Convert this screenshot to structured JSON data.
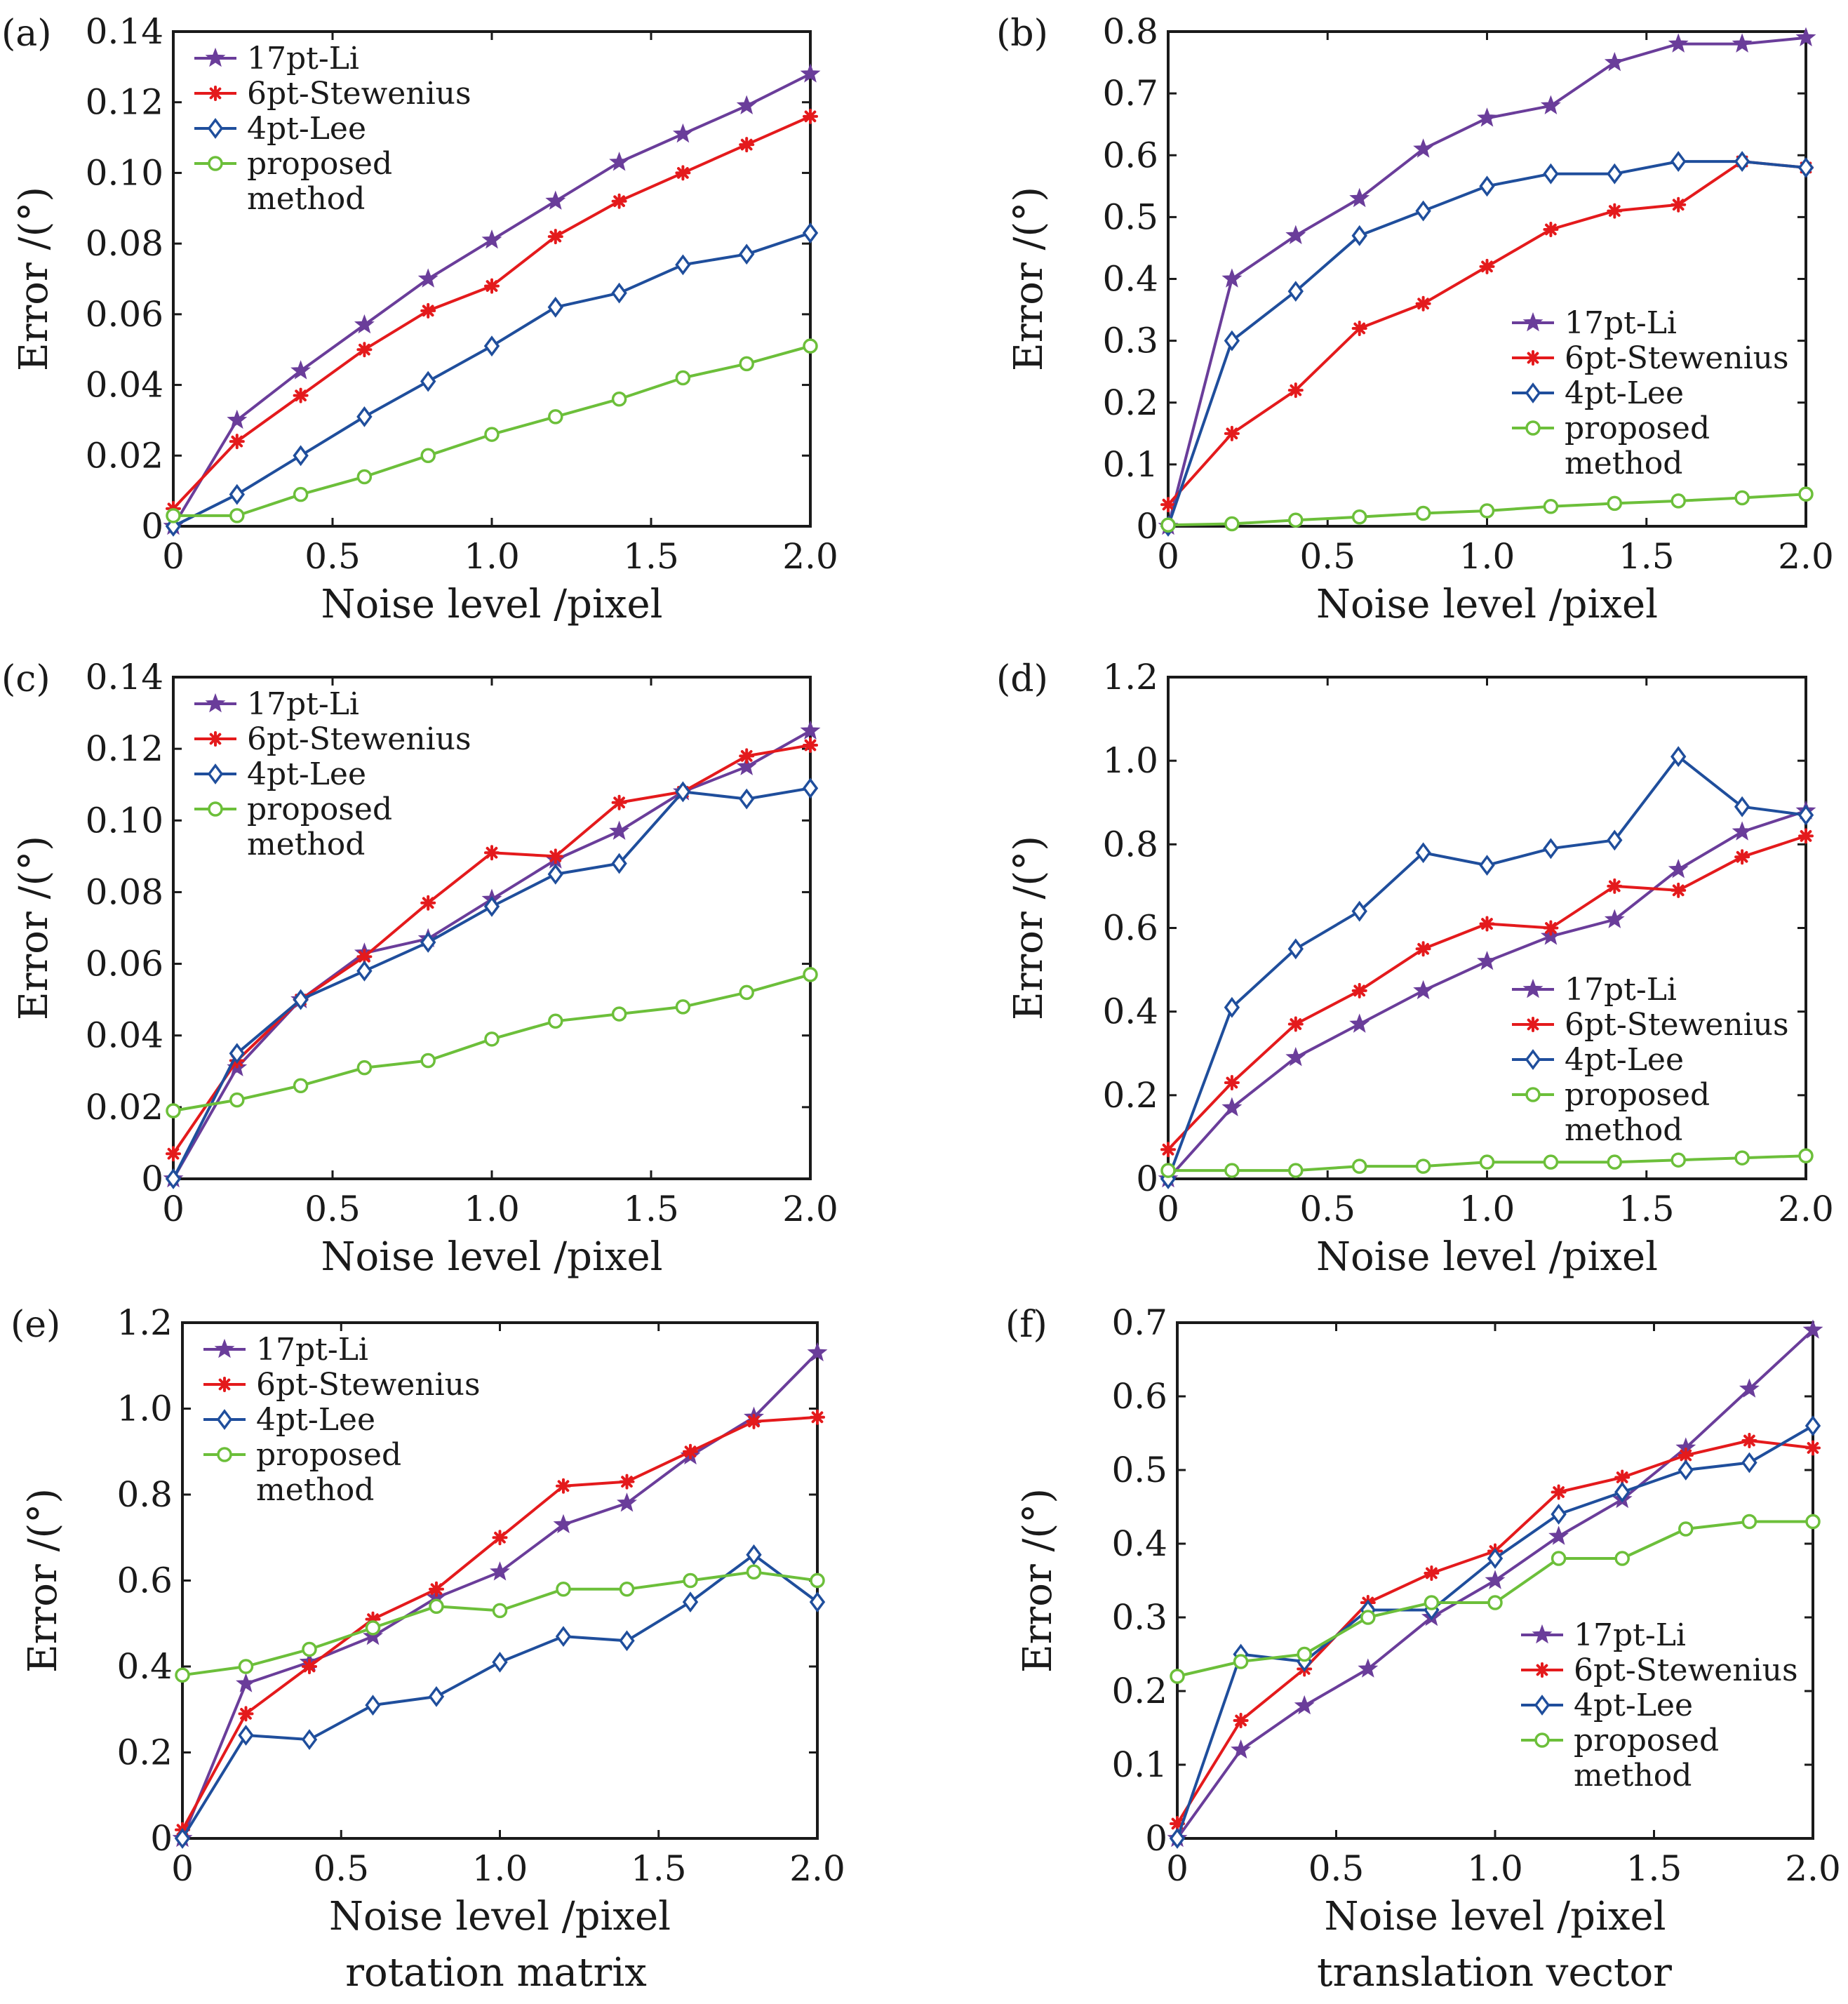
{
  "colors": {
    "17pt-Li": "#6a3d9a",
    "6pt-Stewenius": "#e41a1c",
    "4pt-Lee": "#1f4e9c",
    "proposed": "#6cbf3a"
  },
  "markers": {
    "17pt-Li": "star-marker",
    "6pt-Stewenius": "asterisk-marker",
    "4pt-Lee": "diamond-marker",
    "proposed": "circle-marker"
  },
  "captions": {
    "left": "rotation matrix",
    "right": "translation vector"
  },
  "chart_data": [
    {
      "id": "a",
      "panel_label": "(a)",
      "type": "line",
      "xlabel": "Noise level /pixel",
      "ylabel": "Error /(°)",
      "xlim": [
        0,
        2.0
      ],
      "ylim": [
        0,
        0.14
      ],
      "xticks": [
        0,
        0.5,
        1.0,
        1.5,
        2.0
      ],
      "xtick_labels": [
        "0",
        "0.5",
        "1.0",
        "1.5",
        "2.0"
      ],
      "yticks": [
        0,
        0.02,
        0.04,
        0.06,
        0.08,
        0.1,
        0.12,
        0.14
      ],
      "ytick_labels": [
        "0",
        "0.02",
        "0.04",
        "0.06",
        "0.08",
        "0.10",
        "0.12",
        "0.14"
      ],
      "legend_position": "top-left",
      "x": [
        0,
        0.2,
        0.4,
        0.6,
        0.8,
        1.0,
        1.2,
        1.4,
        1.6,
        1.8,
        2.0
      ],
      "series": [
        {
          "key": "17pt-Li",
          "legend": [
            "17pt-Li"
          ],
          "values": [
            0,
            0.03,
            0.044,
            0.057,
            0.07,
            0.081,
            0.092,
            0.103,
            0.111,
            0.119,
            0.128
          ]
        },
        {
          "key": "6pt-Stewenius",
          "legend": [
            "6pt-Stewenius"
          ],
          "values": [
            0.005,
            0.024,
            0.037,
            0.05,
            0.061,
            0.068,
            0.082,
            0.092,
            0.1,
            0.108,
            0.116
          ]
        },
        {
          "key": "4pt-Lee",
          "legend": [
            "4pt-Lee"
          ],
          "values": [
            0,
            0.009,
            0.02,
            0.031,
            0.041,
            0.051,
            0.062,
            0.066,
            0.074,
            0.077,
            0.083
          ]
        },
        {
          "key": "proposed",
          "legend": [
            "proposed",
            "method"
          ],
          "values": [
            0.003,
            0.003,
            0.009,
            0.014,
            0.02,
            0.026,
            0.031,
            0.036,
            0.042,
            0.046,
            0.051
          ]
        }
      ]
    },
    {
      "id": "b",
      "panel_label": "(b)",
      "type": "line",
      "xlabel": "Noise level /pixel",
      "ylabel": "Error /(°)",
      "xlim": [
        0,
        2.0
      ],
      "ylim": [
        0,
        0.8
      ],
      "xticks": [
        0,
        0.5,
        1.0,
        1.5,
        2.0
      ],
      "xtick_labels": [
        "0",
        "0.5",
        "1.0",
        "1.5",
        "2.0"
      ],
      "yticks": [
        0,
        0.1,
        0.2,
        0.3,
        0.4,
        0.5,
        0.6,
        0.7,
        0.8
      ],
      "ytick_labels": [
        "0",
        "0.1",
        "0.2",
        "0.3",
        "0.4",
        "0.5",
        "0.6",
        "0.7",
        "0.8"
      ],
      "legend_position": "middle-right",
      "x": [
        0,
        0.2,
        0.4,
        0.6,
        0.8,
        1.0,
        1.2,
        1.4,
        1.6,
        1.8,
        2.0
      ],
      "series": [
        {
          "key": "17pt-Li",
          "legend": [
            "17pt-Li"
          ],
          "values": [
            0,
            0.4,
            0.47,
            0.53,
            0.61,
            0.66,
            0.68,
            0.75,
            0.78,
            0.78,
            0.79
          ]
        },
        {
          "key": "6pt-Stewenius",
          "legend": [
            "6pt-Stewenius"
          ],
          "values": [
            0.035,
            0.15,
            0.22,
            0.32,
            0.36,
            0.42,
            0.48,
            0.51,
            0.52,
            0.59,
            0.58
          ]
        },
        {
          "key": "4pt-Lee",
          "legend": [
            "4pt-Lee"
          ],
          "values": [
            0,
            0.3,
            0.38,
            0.47,
            0.51,
            0.55,
            0.57,
            0.57,
            0.59,
            0.59,
            0.58
          ]
        },
        {
          "key": "proposed",
          "legend": [
            "proposed",
            "method"
          ],
          "values": [
            0.002,
            0.004,
            0.01,
            0.015,
            0.021,
            0.025,
            0.032,
            0.037,
            0.041,
            0.046,
            0.052
          ]
        }
      ]
    },
    {
      "id": "c",
      "panel_label": "(c)",
      "type": "line",
      "xlabel": "Noise level /pixel",
      "ylabel": "Error /(°)",
      "xlim": [
        0,
        2.0
      ],
      "ylim": [
        0,
        0.14
      ],
      "xticks": [
        0,
        0.5,
        1.0,
        1.5,
        2.0
      ],
      "xtick_labels": [
        "0",
        "0.5",
        "1.0",
        "1.5",
        "2.0"
      ],
      "yticks": [
        0,
        0.02,
        0.04,
        0.06,
        0.08,
        0.1,
        0.12,
        0.14
      ],
      "ytick_labels": [
        "0",
        "0.02",
        "0.04",
        "0.06",
        "0.08",
        "0.10",
        "0.12",
        "0.14"
      ],
      "legend_position": "top-left",
      "x": [
        0,
        0.2,
        0.4,
        0.6,
        0.8,
        1.0,
        1.2,
        1.4,
        1.6,
        1.8,
        2.0
      ],
      "series": [
        {
          "key": "17pt-Li",
          "legend": [
            "17pt-Li"
          ],
          "values": [
            0,
            0.031,
            0.05,
            0.063,
            0.067,
            0.078,
            0.089,
            0.097,
            0.108,
            0.115,
            0.125
          ]
        },
        {
          "key": "6pt-Stewenius",
          "legend": [
            "6pt-Stewenius"
          ],
          "values": [
            0.007,
            0.033,
            0.05,
            0.062,
            0.077,
            0.091,
            0.09,
            0.105,
            0.108,
            0.118,
            0.121
          ]
        },
        {
          "key": "4pt-Lee",
          "legend": [
            "4pt-Lee"
          ],
          "values": [
            0,
            0.035,
            0.05,
            0.058,
            0.066,
            0.076,
            0.085,
            0.088,
            0.108,
            0.106,
            0.109
          ]
        },
        {
          "key": "proposed",
          "legend": [
            "proposed",
            "method"
          ],
          "values": [
            0.019,
            0.022,
            0.026,
            0.031,
            0.033,
            0.039,
            0.044,
            0.046,
            0.048,
            0.052,
            0.057
          ]
        }
      ]
    },
    {
      "id": "d",
      "panel_label": "(d)",
      "type": "line",
      "xlabel": "Noise level /pixel",
      "ylabel": "Error /(°)",
      "xlim": [
        0,
        2.0
      ],
      "ylim": [
        0,
        1.2
      ],
      "xticks": [
        0,
        0.5,
        1.0,
        1.5,
        2.0
      ],
      "xtick_labels": [
        "0",
        "0.5",
        "1.0",
        "1.5",
        "2.0"
      ],
      "yticks": [
        0,
        0.2,
        0.4,
        0.6,
        0.8,
        1.0,
        1.2
      ],
      "ytick_labels": [
        "0",
        "0.2",
        "0.4",
        "0.6",
        "0.8",
        "1.0",
        "1.2"
      ],
      "legend_position": "bottom-right",
      "x": [
        0,
        0.2,
        0.4,
        0.6,
        0.8,
        1.0,
        1.2,
        1.4,
        1.6,
        1.8,
        2.0
      ],
      "series": [
        {
          "key": "17pt-Li",
          "legend": [
            "17pt-Li"
          ],
          "values": [
            0,
            0.17,
            0.29,
            0.37,
            0.45,
            0.52,
            0.58,
            0.62,
            0.74,
            0.83,
            0.88
          ]
        },
        {
          "key": "6pt-Stewenius",
          "legend": [
            "6pt-Stewenius"
          ],
          "values": [
            0.07,
            0.23,
            0.37,
            0.45,
            0.55,
            0.61,
            0.6,
            0.7,
            0.69,
            0.77,
            0.82
          ]
        },
        {
          "key": "4pt-Lee",
          "legend": [
            "4pt-Lee"
          ],
          "values": [
            0,
            0.41,
            0.55,
            0.64,
            0.78,
            0.75,
            0.79,
            0.81,
            1.01,
            0.89,
            0.87
          ]
        },
        {
          "key": "proposed",
          "legend": [
            "proposed",
            "method"
          ],
          "values": [
            0.02,
            0.02,
            0.02,
            0.03,
            0.03,
            0.04,
            0.04,
            0.04,
            0.045,
            0.05,
            0.055
          ]
        }
      ]
    },
    {
      "id": "e",
      "panel_label": "(e)",
      "type": "line",
      "xlabel": "Noise level /pixel",
      "ylabel": "Error /(°)",
      "xlim": [
        0,
        2.0
      ],
      "ylim": [
        0,
        1.2
      ],
      "xticks": [
        0,
        0.5,
        1.0,
        1.5,
        2.0
      ],
      "xtick_labels": [
        "0",
        "0.5",
        "1.0",
        "1.5",
        "2.0"
      ],
      "yticks": [
        0,
        0.2,
        0.4,
        0.6,
        0.8,
        1.0,
        1.2
      ],
      "ytick_labels": [
        "0",
        "0.2",
        "0.4",
        "0.6",
        "0.8",
        "1.0",
        "1.2"
      ],
      "legend_position": "top-left",
      "x": [
        0,
        0.2,
        0.4,
        0.6,
        0.8,
        1.0,
        1.2,
        1.4,
        1.6,
        1.8,
        2.0
      ],
      "series": [
        {
          "key": "17pt-Li",
          "legend": [
            "17pt-Li"
          ],
          "values": [
            0,
            0.36,
            0.41,
            0.47,
            0.56,
            0.62,
            0.73,
            0.78,
            0.89,
            0.98,
            1.13
          ]
        },
        {
          "key": "6pt-Stewenius",
          "legend": [
            "6pt-Stewenius"
          ],
          "values": [
            0.02,
            0.29,
            0.4,
            0.51,
            0.58,
            0.7,
            0.82,
            0.83,
            0.9,
            0.97,
            0.98
          ]
        },
        {
          "key": "4pt-Lee",
          "legend": [
            "4pt-Lee"
          ],
          "values": [
            0,
            0.24,
            0.23,
            0.31,
            0.33,
            0.41,
            0.47,
            0.46,
            0.55,
            0.66,
            0.55
          ]
        },
        {
          "key": "proposed",
          "legend": [
            "proposed",
            "method"
          ],
          "values": [
            0.38,
            0.4,
            0.44,
            0.49,
            0.54,
            0.53,
            0.58,
            0.58,
            0.6,
            0.62,
            0.6
          ]
        }
      ]
    },
    {
      "id": "f",
      "panel_label": "(f)",
      "type": "line",
      "xlabel": "Noise level /pixel",
      "ylabel": "Error /(°)",
      "xlim": [
        0,
        2.0
      ],
      "ylim": [
        0,
        0.7
      ],
      "xticks": [
        0,
        0.5,
        1.0,
        1.5,
        2.0
      ],
      "xtick_labels": [
        "0",
        "0.5",
        "1.0",
        "1.5",
        "2.0"
      ],
      "yticks": [
        0,
        0.1,
        0.2,
        0.3,
        0.4,
        0.5,
        0.6,
        0.7
      ],
      "ytick_labels": [
        "0",
        "0.1",
        "0.2",
        "0.3",
        "0.4",
        "0.5",
        "0.6",
        "0.7"
      ],
      "legend_position": "bottom-right",
      "x": [
        0,
        0.2,
        0.4,
        0.6,
        0.8,
        1.0,
        1.2,
        1.4,
        1.6,
        1.8,
        2.0
      ],
      "series": [
        {
          "key": "17pt-Li",
          "legend": [
            "17pt-Li"
          ],
          "values": [
            0,
            0.12,
            0.18,
            0.23,
            0.3,
            0.35,
            0.41,
            0.46,
            0.53,
            0.61,
            0.69
          ]
        },
        {
          "key": "6pt-Stewenius",
          "legend": [
            "6pt-Stewenius"
          ],
          "values": [
            0.02,
            0.16,
            0.23,
            0.32,
            0.36,
            0.39,
            0.47,
            0.49,
            0.52,
            0.54,
            0.53
          ]
        },
        {
          "key": "4pt-Lee",
          "legend": [
            "4pt-Lee"
          ],
          "values": [
            0,
            0.25,
            0.24,
            0.31,
            0.31,
            0.38,
            0.44,
            0.47,
            0.5,
            0.51,
            0.56
          ]
        },
        {
          "key": "proposed",
          "legend": [
            "proposed",
            "method"
          ],
          "values": [
            0.22,
            0.24,
            0.25,
            0.3,
            0.32,
            0.32,
            0.38,
            0.38,
            0.42,
            0.43,
            0.43
          ]
        }
      ]
    }
  ]
}
